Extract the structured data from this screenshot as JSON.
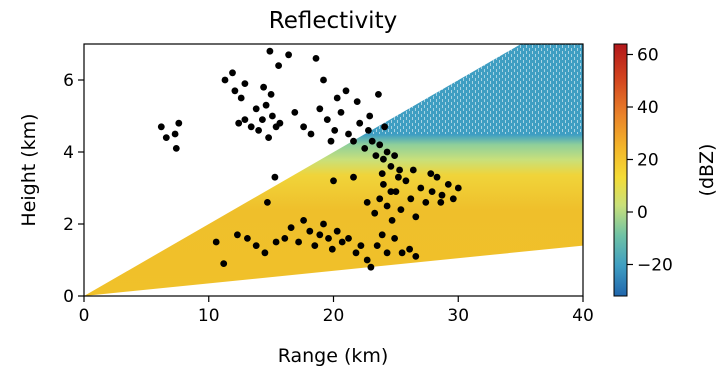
{
  "chart_data": {
    "type": "scatter",
    "title": "Reflectivity",
    "xlabel": "Range (km)",
    "ylabel": "Height (km)",
    "xlim": [
      0,
      40
    ],
    "ylim": [
      0,
      7
    ],
    "xticks": [
      0,
      10,
      20,
      30,
      40
    ],
    "yticks": [
      0,
      2,
      4,
      6
    ],
    "grid": false,
    "colorbar": {
      "label": "(dBZ)",
      "range": [
        -32,
        64
      ],
      "ticks": [
        -20,
        0,
        20,
        40,
        60
      ],
      "tick_labels": [
        "−20",
        "0",
        "20",
        "40",
        "60"
      ],
      "colors": [
        "#2166ac",
        "#3f9ec2",
        "#6fc2a5",
        "#c9e07a",
        "#f4dc36",
        "#f3b52a",
        "#e9822a",
        "#d3451f",
        "#b2181b"
      ]
    },
    "background_field": {
      "description_type": "radar_rhi",
      "beam_bottom_elevation_km": [
        0.0,
        1.4
      ],
      "beam_top_elevation_deg_at_40km": 11.3,
      "upper_layer_color": "#3f9ec2",
      "mid_layer_color": "#c9e07a",
      "lower_layer_color": "#f2c42b"
    },
    "series": [
      {
        "marker_color": "#000000",
        "points": [
          [
            6.2,
            4.7
          ],
          [
            6.6,
            4.4
          ],
          [
            7.3,
            4.5
          ],
          [
            7.4,
            4.1
          ],
          [
            7.6,
            4.8
          ],
          [
            11.3,
            6.0
          ],
          [
            11.9,
            6.2
          ],
          [
            12.1,
            5.7
          ],
          [
            12.6,
            5.5
          ],
          [
            12.9,
            5.9
          ],
          [
            12.4,
            4.8
          ],
          [
            12.9,
            4.9
          ],
          [
            13.4,
            4.7
          ],
          [
            13.8,
            5.2
          ],
          [
            14.0,
            4.6
          ],
          [
            14.3,
            4.9
          ],
          [
            14.6,
            5.3
          ],
          [
            14.8,
            4.4
          ],
          [
            15.1,
            5.0
          ],
          [
            15.4,
            4.7
          ],
          [
            15.7,
            4.8
          ],
          [
            15.0,
            5.6
          ],
          [
            14.4,
            5.8
          ],
          [
            15.6,
            6.4
          ],
          [
            14.9,
            6.8
          ],
          [
            16.4,
            6.7
          ],
          [
            18.6,
            6.6
          ],
          [
            19.2,
            6.0
          ],
          [
            18.9,
            5.2
          ],
          [
            19.5,
            4.9
          ],
          [
            20.1,
            4.6
          ],
          [
            20.6,
            5.1
          ],
          [
            21.2,
            4.5
          ],
          [
            21.6,
            4.3
          ],
          [
            22.1,
            4.8
          ],
          [
            22.5,
            4.1
          ],
          [
            22.8,
            4.6
          ],
          [
            23.1,
            4.3
          ],
          [
            23.4,
            3.9
          ],
          [
            23.7,
            4.2
          ],
          [
            24.0,
            3.8
          ],
          [
            24.3,
            4.0
          ],
          [
            24.6,
            3.6
          ],
          [
            24.9,
            3.9
          ],
          [
            21.0,
            5.7
          ],
          [
            21.9,
            5.4
          ],
          [
            22.9,
            5.0
          ],
          [
            23.6,
            5.6
          ],
          [
            24.1,
            4.7
          ],
          [
            25.3,
            3.5
          ],
          [
            20.3,
            5.5
          ],
          [
            19.8,
            4.3
          ],
          [
            17.6,
            4.7
          ],
          [
            16.9,
            5.1
          ],
          [
            18.2,
            4.5
          ],
          [
            15.3,
            3.3
          ],
          [
            14.7,
            2.6
          ],
          [
            10.6,
            1.5
          ],
          [
            11.2,
            0.9
          ],
          [
            12.3,
            1.7
          ],
          [
            13.1,
            1.6
          ],
          [
            13.8,
            1.4
          ],
          [
            14.5,
            1.2
          ],
          [
            15.4,
            1.5
          ],
          [
            16.1,
            1.6
          ],
          [
            16.6,
            1.9
          ],
          [
            17.2,
            1.5
          ],
          [
            17.6,
            2.1
          ],
          [
            18.1,
            1.8
          ],
          [
            18.5,
            1.4
          ],
          [
            18.9,
            1.7
          ],
          [
            19.2,
            2.0
          ],
          [
            19.6,
            1.6
          ],
          [
            19.9,
            1.3
          ],
          [
            20.3,
            1.8
          ],
          [
            20.7,
            1.5
          ],
          [
            21.2,
            1.6
          ],
          [
            21.8,
            1.2
          ],
          [
            22.2,
            1.4
          ],
          [
            22.7,
            1.0
          ],
          [
            23.0,
            0.8
          ],
          [
            23.5,
            1.4
          ],
          [
            23.9,
            1.7
          ],
          [
            24.3,
            1.2
          ],
          [
            24.9,
            1.6
          ],
          [
            25.5,
            1.2
          ],
          [
            26.1,
            1.3
          ],
          [
            26.6,
            1.1
          ],
          [
            23.3,
            2.3
          ],
          [
            23.7,
            2.7
          ],
          [
            24.0,
            3.1
          ],
          [
            24.3,
            2.5
          ],
          [
            24.7,
            2.1
          ],
          [
            25.0,
            2.9
          ],
          [
            25.4,
            2.4
          ],
          [
            25.8,
            3.2
          ],
          [
            26.2,
            2.7
          ],
          [
            26.6,
            2.2
          ],
          [
            27.0,
            3.0
          ],
          [
            27.4,
            2.6
          ],
          [
            27.9,
            2.9
          ],
          [
            28.3,
            3.3
          ],
          [
            28.7,
            2.8
          ],
          [
            29.2,
            3.1
          ],
          [
            29.6,
            2.7
          ],
          [
            30.0,
            3.0
          ],
          [
            28.6,
            2.6
          ],
          [
            27.8,
            3.4
          ],
          [
            26.4,
            3.5
          ],
          [
            23.9,
            3.4
          ],
          [
            20.0,
            3.2
          ],
          [
            24.6,
            2.9
          ],
          [
            25.2,
            3.3
          ],
          [
            22.7,
            2.6
          ],
          [
            21.6,
            3.3
          ]
        ]
      }
    ]
  }
}
